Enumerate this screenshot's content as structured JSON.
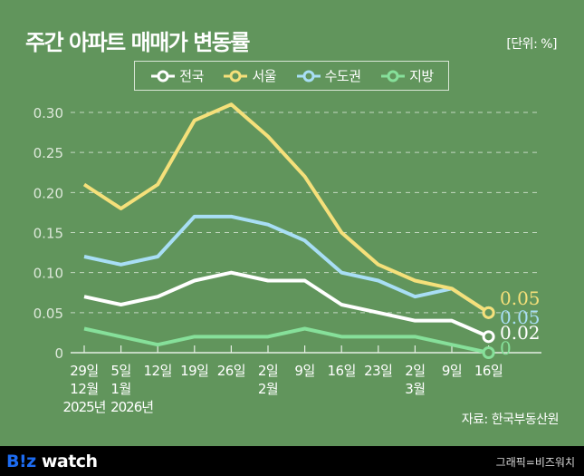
{
  "header": {
    "title": "주간 아파트 매매가 변동률",
    "unit": "[단위: %]"
  },
  "footer": {
    "source": "자료: 한국부동산원",
    "logo_prefix": "B!z",
    "logo_suffix": " watch",
    "credit": "그래픽=비즈워치"
  },
  "chart_data": {
    "type": "line",
    "title": "주간 아파트 매매가 변동률",
    "xlabel": "",
    "ylabel": "",
    "unit": "%",
    "ylim": [
      0,
      0.3
    ],
    "yticks": [
      "0",
      "0.05",
      "0.10",
      "0.15",
      "0.20",
      "0.25",
      "0.30"
    ],
    "ytick_values": [
      0,
      0.05,
      0.1,
      0.15,
      0.2,
      0.25,
      0.3
    ],
    "grid": true,
    "legend": "top-center",
    "categories": [
      "29일",
      "5일",
      "12일",
      "19일",
      "26일",
      "2일",
      "9일",
      "16일",
      "23일",
      "2일",
      "9일",
      "16일"
    ],
    "month_labels": [
      "12월",
      "1월",
      "",
      "",
      "",
      "2월",
      "",
      "",
      "",
      "3월",
      "",
      ""
    ],
    "year_labels": [
      "2025년",
      "2026년",
      "",
      "",
      "",
      "",
      "",
      "",
      "",
      "",
      "",
      ""
    ],
    "series": [
      {
        "name": "전국",
        "color": "#ffffff",
        "values": [
          0.07,
          0.06,
          0.07,
          0.09,
          0.1,
          0.09,
          0.09,
          0.06,
          0.05,
          0.04,
          0.04,
          0.02
        ],
        "end_label": "0.02"
      },
      {
        "name": "서울",
        "color": "#f5e07a",
        "values": [
          0.21,
          0.18,
          0.21,
          0.29,
          0.31,
          0.27,
          0.22,
          0.15,
          0.11,
          0.09,
          0.08,
          0.05
        ],
        "end_label": "0.05"
      },
      {
        "name": "수도권",
        "color": "#a8def5",
        "values": [
          0.12,
          0.11,
          0.12,
          0.17,
          0.17,
          0.16,
          0.14,
          0.1,
          0.09,
          0.07,
          0.08,
          0.05
        ],
        "end_label": "0.05"
      },
      {
        "name": "지방",
        "color": "#86e09a",
        "values": [
          0.03,
          0.02,
          0.01,
          0.02,
          0.02,
          0.02,
          0.03,
          0.02,
          0.02,
          0.02,
          0.01,
          0
        ],
        "end_label": "0"
      }
    ]
  }
}
